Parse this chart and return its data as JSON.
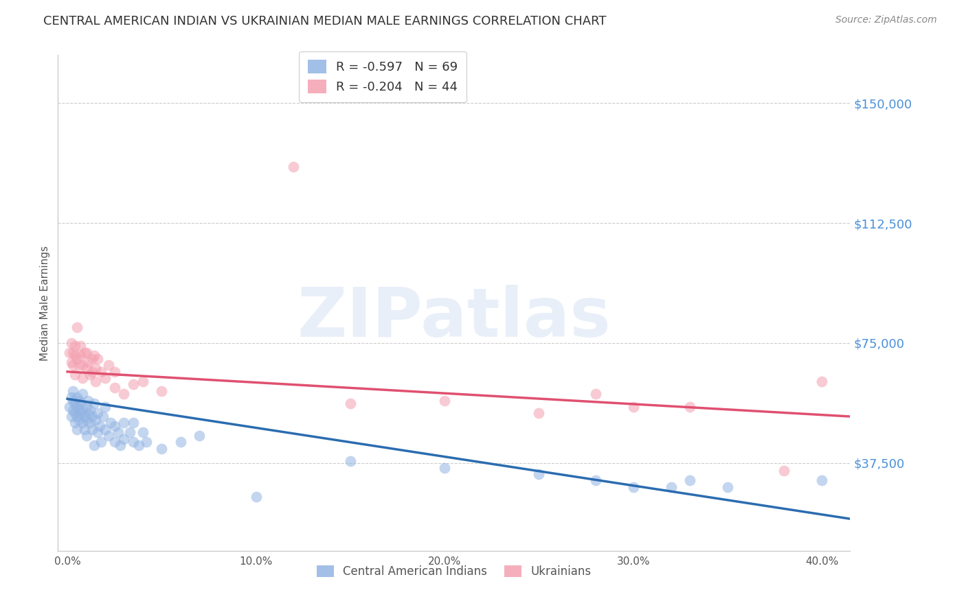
{
  "title": "CENTRAL AMERICAN INDIAN VS UKRAINIAN MEDIAN MALE EARNINGS CORRELATION CHART",
  "source": "Source: ZipAtlas.com",
  "ylabel": "Median Male Earnings",
  "xlabel_ticks": [
    "0.0%",
    "",
    "10.0%",
    "",
    "20.0%",
    "",
    "30.0%",
    "",
    "40.0%"
  ],
  "xlabel_vals": [
    0.0,
    0.05,
    0.1,
    0.15,
    0.2,
    0.25,
    0.3,
    0.35,
    0.4
  ],
  "ytick_labels": [
    "$150,000",
    "$112,500",
    "$75,000",
    "$37,500"
  ],
  "ytick_vals": [
    150000,
    112500,
    75000,
    37500
  ],
  "ylim": [
    10000,
    165000
  ],
  "xlim": [
    -0.005,
    0.415
  ],
  "blue_color": "#92B4E3",
  "pink_color": "#F4A0B0",
  "blue_line_color": "#2B6CB0",
  "pink_line_color": "#E05070",
  "legend_blue_R": "R = -0.597",
  "legend_blue_N": "N = 69",
  "legend_pink_R": "R = -0.204",
  "legend_pink_N": "N = 44",
  "legend_label_blue": "Central American Indians",
  "legend_label_pink": "Ukrainians",
  "watermark": "ZIPatlas",
  "background_color": "#FFFFFF",
  "grid_color": "#CCCCCC",
  "title_color": "#333333",
  "ytick_color": "#4A90D9",
  "source_color": "#888888",
  "blue_scatter": [
    [
      0.001,
      55000
    ],
    [
      0.002,
      52000
    ],
    [
      0.002,
      58000
    ],
    [
      0.003,
      54000
    ],
    [
      0.003,
      57000
    ],
    [
      0.003,
      60000
    ],
    [
      0.004,
      53000
    ],
    [
      0.004,
      56000
    ],
    [
      0.004,
      50000
    ],
    [
      0.005,
      55000
    ],
    [
      0.005,
      52000
    ],
    [
      0.005,
      48000
    ],
    [
      0.005,
      58000
    ],
    [
      0.006,
      54000
    ],
    [
      0.006,
      51000
    ],
    [
      0.006,
      57000
    ],
    [
      0.007,
      53000
    ],
    [
      0.007,
      56000
    ],
    [
      0.008,
      50000
    ],
    [
      0.008,
      54000
    ],
    [
      0.008,
      59000
    ],
    [
      0.009,
      52000
    ],
    [
      0.009,
      48000
    ],
    [
      0.01,
      55000
    ],
    [
      0.01,
      51000
    ],
    [
      0.01,
      46000
    ],
    [
      0.011,
      53000
    ],
    [
      0.011,
      57000
    ],
    [
      0.012,
      50000
    ],
    [
      0.012,
      54000
    ],
    [
      0.013,
      48000
    ],
    [
      0.013,
      52000
    ],
    [
      0.014,
      56000
    ],
    [
      0.014,
      43000
    ],
    [
      0.015,
      51000
    ],
    [
      0.016,
      47000
    ],
    [
      0.016,
      53000
    ],
    [
      0.017,
      49000
    ],
    [
      0.018,
      44000
    ],
    [
      0.019,
      52000
    ],
    [
      0.02,
      48000
    ],
    [
      0.02,
      55000
    ],
    [
      0.022,
      46000
    ],
    [
      0.023,
      50000
    ],
    [
      0.025,
      49000
    ],
    [
      0.025,
      44000
    ],
    [
      0.027,
      47000
    ],
    [
      0.028,
      43000
    ],
    [
      0.03,
      50000
    ],
    [
      0.03,
      45000
    ],
    [
      0.033,
      47000
    ],
    [
      0.035,
      44000
    ],
    [
      0.035,
      50000
    ],
    [
      0.038,
      43000
    ],
    [
      0.04,
      47000
    ],
    [
      0.042,
      44000
    ],
    [
      0.05,
      42000
    ],
    [
      0.06,
      44000
    ],
    [
      0.07,
      46000
    ],
    [
      0.1,
      27000
    ],
    [
      0.15,
      38000
    ],
    [
      0.2,
      36000
    ],
    [
      0.25,
      34000
    ],
    [
      0.28,
      32000
    ],
    [
      0.3,
      30000
    ],
    [
      0.32,
      30000
    ],
    [
      0.33,
      32000
    ],
    [
      0.35,
      30000
    ],
    [
      0.4,
      32000
    ]
  ],
  "pink_scatter": [
    [
      0.001,
      72000
    ],
    [
      0.002,
      69000
    ],
    [
      0.002,
      75000
    ],
    [
      0.003,
      72000
    ],
    [
      0.003,
      68000
    ],
    [
      0.004,
      74000
    ],
    [
      0.004,
      71000
    ],
    [
      0.004,
      65000
    ],
    [
      0.005,
      80000
    ],
    [
      0.005,
      70000
    ],
    [
      0.006,
      68000
    ],
    [
      0.007,
      74000
    ],
    [
      0.007,
      71000
    ],
    [
      0.008,
      68000
    ],
    [
      0.008,
      64000
    ],
    [
      0.009,
      72000
    ],
    [
      0.01,
      67000
    ],
    [
      0.01,
      72000
    ],
    [
      0.011,
      69000
    ],
    [
      0.012,
      65000
    ],
    [
      0.013,
      70000
    ],
    [
      0.013,
      66000
    ],
    [
      0.014,
      71000
    ],
    [
      0.015,
      67000
    ],
    [
      0.015,
      63000
    ],
    [
      0.016,
      70000
    ],
    [
      0.018,
      66000
    ],
    [
      0.02,
      64000
    ],
    [
      0.022,
      68000
    ],
    [
      0.025,
      66000
    ],
    [
      0.025,
      61000
    ],
    [
      0.03,
      59000
    ],
    [
      0.035,
      62000
    ],
    [
      0.04,
      63000
    ],
    [
      0.05,
      60000
    ],
    [
      0.12,
      130000
    ],
    [
      0.15,
      56000
    ],
    [
      0.2,
      57000
    ],
    [
      0.25,
      53000
    ],
    [
      0.28,
      59000
    ],
    [
      0.3,
      55000
    ],
    [
      0.33,
      55000
    ],
    [
      0.38,
      35000
    ],
    [
      0.4,
      63000
    ]
  ],
  "blue_trendline": [
    [
      0.0,
      57500
    ],
    [
      0.415,
      20000
    ]
  ],
  "pink_trendline": [
    [
      0.0,
      66000
    ],
    [
      0.415,
      52000
    ]
  ],
  "marker_size": 130,
  "marker_alpha": 0.55,
  "line_width": 2.5
}
